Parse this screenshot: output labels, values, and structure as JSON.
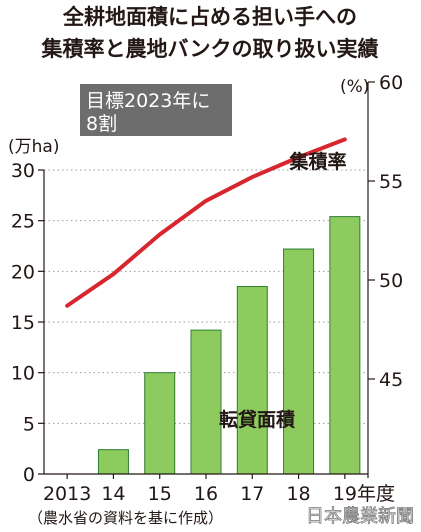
{
  "chart_data": {
    "type": "bar+line",
    "title_lines": [
      "全耕地面積に占める担い手への",
      "集積率と農地バンクの取り扱い実績"
    ],
    "target_lines": [
      "目標2023年に",
      "8割"
    ],
    "categories": [
      "2013",
      "14",
      "15",
      "16",
      "17",
      "18",
      "19年度"
    ],
    "bar_series": {
      "name": "転貸面積",
      "values": [
        0,
        2.4,
        10.0,
        14.2,
        18.5,
        22.2,
        25.4
      ],
      "color": "#8ecb5f"
    },
    "line_series": {
      "name": "集積率",
      "values": [
        48.7,
        50.3,
        52.3,
        54.0,
        55.2,
        56.2,
        57.1
      ],
      "color": "#d7262e"
    },
    "left_axis": {
      "unit_label": "(万ha)",
      "ticks": [
        "0",
        "5",
        "10",
        "15",
        "20",
        "25",
        "30"
      ],
      "ylim": [
        0,
        30
      ]
    },
    "right_axis": {
      "unit_label": "(%)",
      "ticks": [
        "45",
        "50",
        "55",
        "60"
      ],
      "ylim": [
        40,
        60
      ]
    },
    "source_note": "（農水省の資料を基に作成）",
    "credit": "日本農業新聞"
  }
}
